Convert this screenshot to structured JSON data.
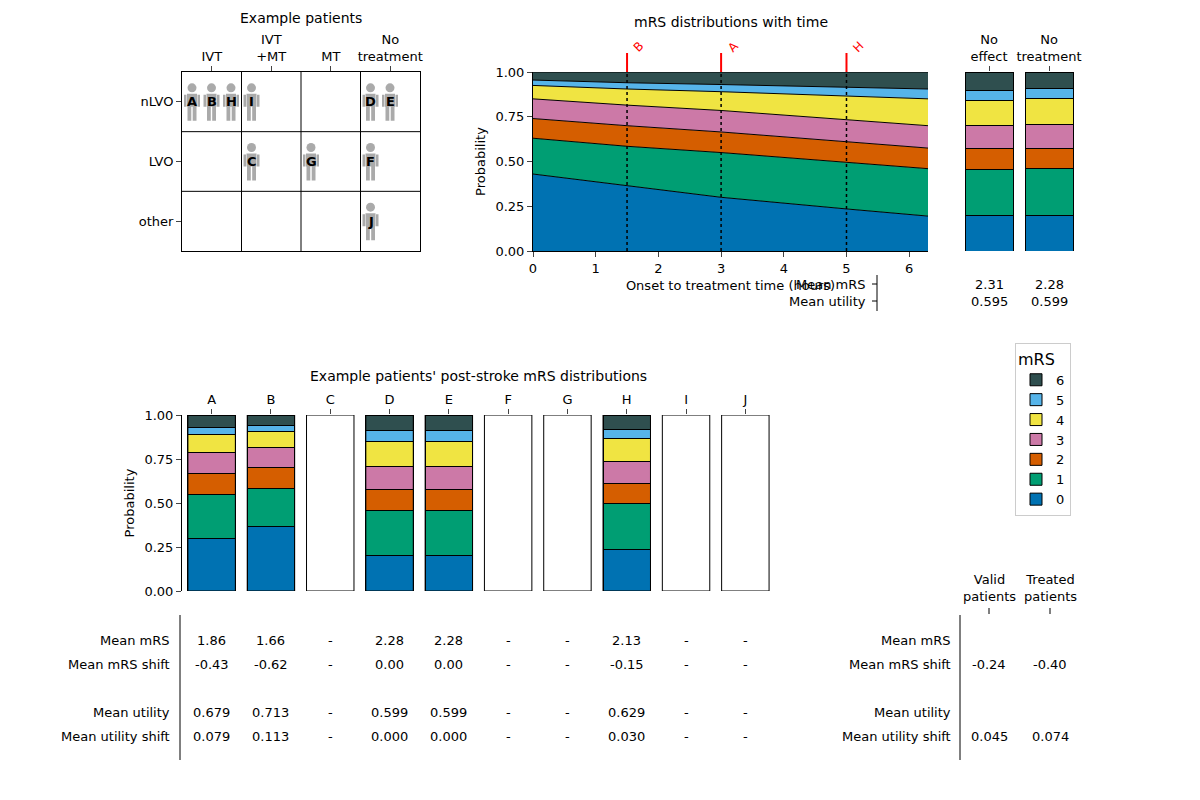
{
  "chart_data": [
    {
      "type": "grid",
      "title": "Example patients",
      "columns": [
        "IVT",
        "IVT\n+MT",
        "MT",
        "No\ntreatment"
      ],
      "rows": [
        "nLVO",
        "LVO",
        "other"
      ],
      "patients": [
        {
          "label": "A",
          "row": "nLVO",
          "column": "IVT"
        },
        {
          "label": "B",
          "row": "nLVO",
          "column": "IVT"
        },
        {
          "label": "H",
          "row": "nLVO",
          "column": "IVT"
        },
        {
          "label": "I",
          "row": "nLVO",
          "column": "IVT\n+MT"
        },
        {
          "label": "D",
          "row": "nLVO",
          "column": "No\ntreatment"
        },
        {
          "label": "E",
          "row": "nLVO",
          "column": "No\ntreatment"
        },
        {
          "label": "C",
          "row": "LVO",
          "column": "IVT\n+MT"
        },
        {
          "label": "G",
          "row": "LVO",
          "column": "MT"
        },
        {
          "label": "F",
          "row": "LVO",
          "column": "No\ntreatment"
        },
        {
          "label": "J",
          "row": "other",
          "column": "No\ntreatment"
        }
      ]
    },
    {
      "type": "area",
      "stacked": true,
      "title": "mRS distributions with time",
      "x_label": "Onset to treatment time (hours)",
      "y_label": "Probability",
      "x": [
        0,
        1.5,
        3,
        5,
        6.3
      ],
      "xlim": [
        0,
        6.3
      ],
      "xticks": [
        0,
        1,
        2,
        3,
        4,
        5,
        6
      ],
      "ylim": [
        0,
        1
      ],
      "yticks": [
        {
          "value": 0,
          "label": "0.00"
        },
        {
          "value": 0.25,
          "label": "0.25"
        },
        {
          "value": 0.5,
          "label": "0.50"
        },
        {
          "value": 0.75,
          "label": "0.75"
        },
        {
          "value": 1,
          "label": "1.00"
        }
      ],
      "series": [
        {
          "name": "0",
          "color": "#0072b2",
          "values": [
            0.43,
            0.365,
            0.3,
            0.235,
            0.195
          ]
        },
        {
          "name": "1",
          "color": "#009e73",
          "values": [
            0.2,
            0.22,
            0.25,
            0.26,
            0.265
          ]
        },
        {
          "name": "2",
          "color": "#d55e00",
          "values": [
            0.11,
            0.115,
            0.115,
            0.115,
            0.115
          ]
        },
        {
          "name": "3",
          "color": "#cc79a7",
          "values": [
            0.11,
            0.115,
            0.12,
            0.125,
            0.125
          ]
        },
        {
          "name": "4",
          "color": "#f0e442",
          "values": [
            0.075,
            0.09,
            0.105,
            0.13,
            0.15
          ]
        },
        {
          "name": "5",
          "color": "#56b4e9",
          "values": [
            0.03,
            0.035,
            0.04,
            0.05,
            0.055
          ]
        },
        {
          "name": "6",
          "color": "#2f4f4f",
          "values": [
            0.045,
            0.06,
            0.07,
            0.085,
            0.095
          ]
        }
      ],
      "annotations": [
        {
          "label": "B",
          "x": 1.5
        },
        {
          "label": "A",
          "x": 3
        },
        {
          "label": "H",
          "x": 5
        }
      ]
    },
    {
      "type": "bar",
      "stacked": true,
      "legend": "right",
      "legend_title": "mRS",
      "categories": [
        "No\neffect",
        "No\ntreatment"
      ],
      "ylim": [
        0,
        1
      ],
      "tick_labels": "x",
      "series": [
        {
          "name": "0",
          "color": "#0072b2",
          "values": [
            0.2,
            0.2
          ]
        },
        {
          "name": "1",
          "color": "#009e73",
          "values": [
            0.255,
            0.26
          ]
        },
        {
          "name": "2",
          "color": "#d55e00",
          "values": [
            0.12,
            0.115
          ]
        },
        {
          "name": "3",
          "color": "#cc79a7",
          "values": [
            0.125,
            0.13
          ]
        },
        {
          "name": "4",
          "color": "#f0e442",
          "values": [
            0.14,
            0.145
          ]
        },
        {
          "name": "5",
          "color": "#56b4e9",
          "values": [
            0.055,
            0.06
          ]
        },
        {
          "name": "6",
          "color": "#2f4f4f",
          "values": [
            0.105,
            0.09
          ]
        }
      ],
      "table": {
        "rows": [
          {
            "label": "Mean mRS",
            "values": [
              "2.31",
              "2.28"
            ]
          },
          {
            "label": "Mean utility",
            "values": [
              "0.595",
              "0.599"
            ]
          }
        ]
      }
    },
    {
      "type": "bar",
      "stacked": true,
      "title": "Example patients' post-stroke mRS distributions",
      "y_label": "Probability",
      "categories": [
        "A",
        "B",
        "C",
        "D",
        "E",
        "F",
        "G",
        "H",
        "I",
        "J"
      ],
      "ylim": [
        0,
        1
      ],
      "yticks": [
        {
          "value": 0,
          "label": "0.00"
        },
        {
          "value": 0.25,
          "label": "0.25"
        },
        {
          "value": 0.5,
          "label": "0.50"
        },
        {
          "value": 0.75,
          "label": "0.75"
        },
        {
          "value": 1,
          "label": "1.00"
        }
      ],
      "series": [
        {
          "name": "0",
          "color": "#0072b2",
          "values": [
            0.3,
            0.365,
            null,
            0.2,
            0.2,
            null,
            null,
            0.235,
            null,
            null
          ]
        },
        {
          "name": "1",
          "color": "#009e73",
          "values": [
            0.25,
            0.22,
            null,
            0.26,
            0.26,
            null,
            null,
            0.26,
            null,
            null
          ]
        },
        {
          "name": "2",
          "color": "#d55e00",
          "values": [
            0.115,
            0.115,
            null,
            0.115,
            0.115,
            null,
            null,
            0.115,
            null,
            null
          ]
        },
        {
          "name": "3",
          "color": "#cc79a7",
          "values": [
            0.12,
            0.115,
            null,
            0.13,
            0.13,
            null,
            null,
            0.125,
            null,
            null
          ]
        },
        {
          "name": "4",
          "color": "#f0e442",
          "values": [
            0.105,
            0.09,
            null,
            0.145,
            0.145,
            null,
            null,
            0.13,
            null,
            null
          ]
        },
        {
          "name": "5",
          "color": "#56b4e9",
          "values": [
            0.04,
            0.035,
            null,
            0.06,
            0.06,
            null,
            null,
            0.05,
            null,
            null
          ]
        },
        {
          "name": "6",
          "color": "#2f4f4f",
          "values": [
            0.07,
            0.06,
            null,
            0.09,
            0.09,
            null,
            null,
            0.085,
            null,
            null
          ]
        }
      ],
      "table": {
        "rows": [
          {
            "label": "Mean mRS",
            "values": [
              "1.86",
              "1.66",
              "-",
              "2.28",
              "2.28",
              "-",
              "-",
              "2.13",
              "-",
              "-"
            ]
          },
          {
            "label": "Mean mRS shift",
            "values": [
              "-0.43",
              "-0.62",
              "-",
              "0.00",
              "0.00",
              "-",
              "-",
              "-0.15",
              "-",
              "-"
            ]
          },
          {
            "label": "Mean utility",
            "values": [
              "0.679",
              "0.713",
              "-",
              "0.599",
              "0.599",
              "-",
              "-",
              "0.629",
              "-",
              "-"
            ]
          },
          {
            "label": "Mean utility shift",
            "values": [
              "0.079",
              "0.113",
              "-",
              "0.000",
              "0.000",
              "-",
              "-",
              "0.030",
              "-",
              "-"
            ]
          }
        ]
      }
    },
    {
      "type": "table",
      "columns": [
        "Valid\npatients",
        "Treated\npatients"
      ],
      "rows": [
        {
          "label": "Mean mRS",
          "values": [
            null,
            null
          ]
        },
        {
          "label": "Mean mRS shift",
          "values": [
            "-0.24",
            "-0.40"
          ]
        },
        {
          "label": "Mean utility",
          "values": [
            null,
            null
          ]
        },
        {
          "label": "Mean utility shift",
          "values": [
            "0.045",
            "0.074"
          ]
        }
      ]
    }
  ]
}
